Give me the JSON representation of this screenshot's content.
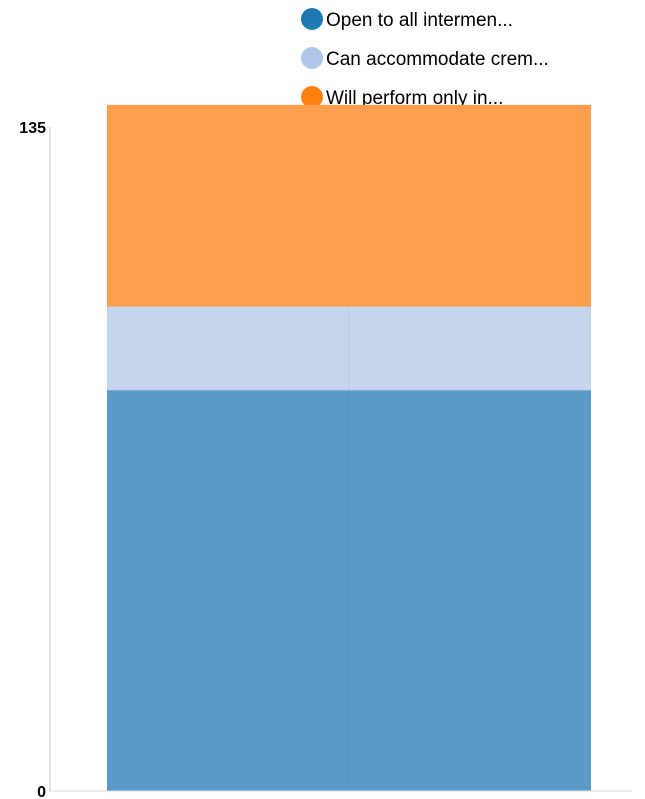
{
  "chart_data": {
    "type": "bar",
    "stacked": true,
    "categories": [
      "",
      ""
    ],
    "series": [
      {
        "name": "Open to all intermen...",
        "color": "#5b9ac8",
        "values": [
          81.5,
          81.5
        ]
      },
      {
        "name": "Can accommodate crem...",
        "color": "#c4d5ec",
        "values": [
          17,
          17
        ]
      },
      {
        "name": "Will perform only in...",
        "color": "#fe9d4b",
        "values": [
          41,
          41
        ]
      }
    ],
    "legend_marker_colors": [
      "#1f77b4",
      "#aec7e8",
      "#ff7f0e"
    ],
    "yticks": [
      "135",
      "0"
    ],
    "ylim": [
      0,
      135
    ],
    "legend_position": "top-right",
    "grid": false,
    "title": "",
    "xlabel": "",
    "ylabel": ""
  }
}
